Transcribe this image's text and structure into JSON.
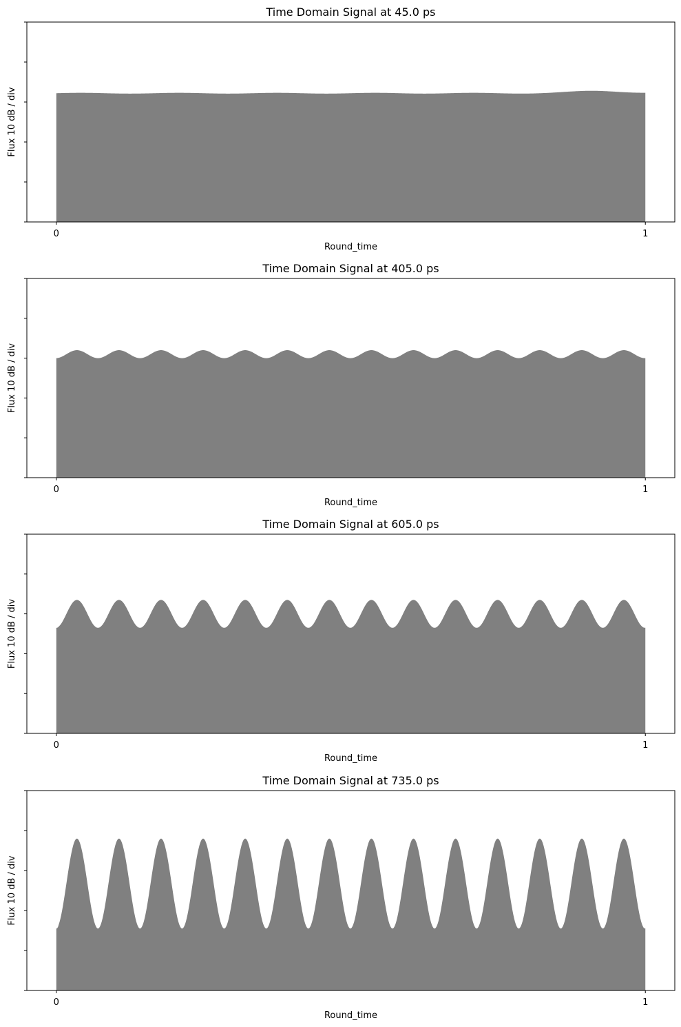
{
  "chart_data": [
    {
      "type": "area",
      "title": "Time Domain Signal at 45.0 ps",
      "xlabel": "Round_time",
      "ylabel": "Flux 10 dB / div",
      "xlim": [
        -0.05,
        1.05
      ],
      "ylim": [
        0,
        5
      ],
      "xticks": [
        "0",
        "1"
      ],
      "yticks_count": 6,
      "grid": false,
      "fill_color": "#808080",
      "signal": {
        "base": 3.22,
        "ripple": 0.01,
        "peaks": 0,
        "bump_center": 0.92,
        "bump_height": 0.06
      }
    },
    {
      "type": "area",
      "title": "Time Domain Signal at 405.0 ps",
      "xlabel": "Round_time",
      "ylabel": "Flux 10 dB / div",
      "xlim": [
        -0.05,
        1.05
      ],
      "ylim": [
        0,
        5
      ],
      "xticks": [
        "0",
        "1"
      ],
      "yticks_count": 6,
      "grid": false,
      "fill_color": "#808080",
      "signal": {
        "peaks": 14,
        "min": 3.0,
        "max": 3.2
      }
    },
    {
      "type": "area",
      "title": "Time Domain Signal at 605.0 ps",
      "xlabel": "Round_time",
      "ylabel": "Flux 10 dB / div",
      "xlim": [
        -0.05,
        1.05
      ],
      "ylim": [
        0,
        5
      ],
      "xticks": [
        "0",
        "1"
      ],
      "yticks_count": 6,
      "grid": false,
      "fill_color": "#808080",
      "signal": {
        "peaks": 14,
        "min": 2.65,
        "max": 3.35
      }
    },
    {
      "type": "area",
      "title": "Time Domain Signal at 735.0 ps",
      "xlabel": "Round_time",
      "ylabel": "Flux 10 dB / div",
      "xlim": [
        -0.05,
        1.05
      ],
      "ylim": [
        0,
        5
      ],
      "xticks": [
        "0",
        "1"
      ],
      "yticks_count": 6,
      "grid": false,
      "fill_color": "#808080",
      "signal": {
        "peaks": 14,
        "min": 1.55,
        "max": 3.8
      }
    }
  ]
}
